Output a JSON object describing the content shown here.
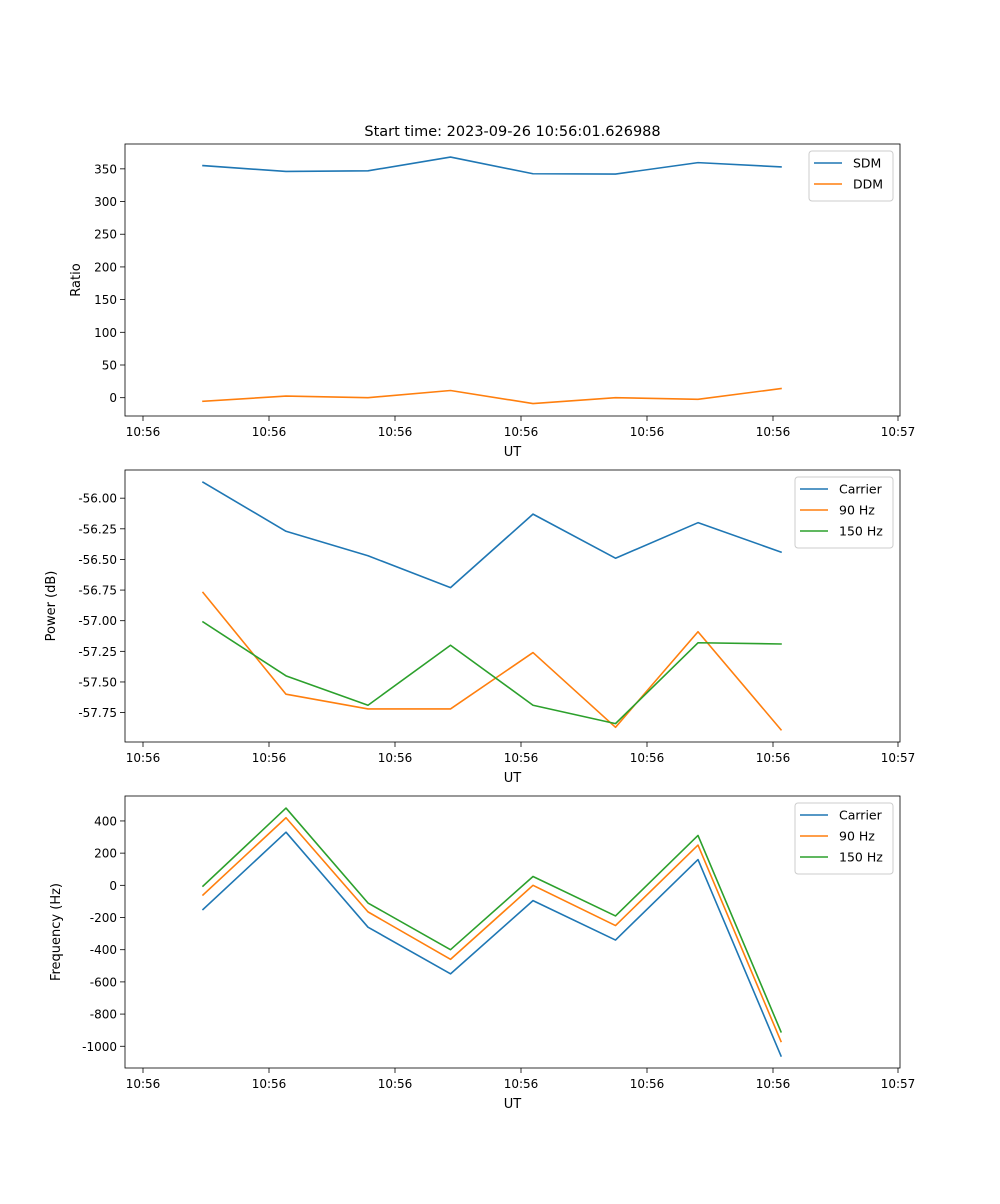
{
  "figure": {
    "title": "Start time: 2023-09-26 10:56:01.626988"
  },
  "chart_data": [
    {
      "type": "line",
      "title": "Start time: 2023-09-26 10:56:01.626988",
      "xlabel": "UT",
      "ylabel": "Ratio",
      "x_ticks": [
        "10:56",
        "10:56",
        "10:56",
        "10:56",
        "10:56",
        "10:56",
        "10:56"
      ],
      "x_last_tick": "10:57",
      "y_ticks": [
        "0",
        "50",
        "100",
        "150",
        "200",
        "250",
        "300",
        "350"
      ],
      "y_tick_values": [
        0,
        50,
        100,
        150,
        200,
        250,
        300,
        350
      ],
      "ylim": [
        -28,
        388
      ],
      "legend_position": "top-right",
      "series": [
        {
          "name": "SDM",
          "color": "#1f77b4",
          "values": [
            355,
            346,
            347,
            368,
            342.5,
            342,
            359.5,
            353
          ]
        },
        {
          "name": "DDM",
          "color": "#ff7f0e",
          "values": [
            -5.5,
            2.5,
            0,
            11,
            -9,
            0,
            -2.5,
            14
          ]
        }
      ]
    },
    {
      "type": "line",
      "xlabel": "UT",
      "ylabel": "Power (dB)",
      "x_ticks": [
        "10:56",
        "10:56",
        "10:56",
        "10:56",
        "10:56",
        "10:56",
        "10:56"
      ],
      "x_last_tick": "10:57",
      "y_ticks": [
        "-57.75",
        "-57.50",
        "-57.25",
        "-57.00",
        "-56.75",
        "-56.50",
        "-56.25",
        "-56.00"
      ],
      "y_tick_values": [
        -57.75,
        -57.5,
        -57.25,
        -57.0,
        -56.75,
        -56.5,
        -56.25,
        -56.0
      ],
      "ylim": [
        -57.99,
        -55.77
      ],
      "legend_position": "top-right",
      "series": [
        {
          "name": "Carrier",
          "color": "#1f77b4",
          "values": [
            -55.87,
            -56.27,
            -56.47,
            -56.73,
            -56.13,
            -56.49,
            -56.2,
            -56.44
          ]
        },
        {
          "name": "90 Hz",
          "color": "#ff7f0e",
          "values": [
            -56.77,
            -57.6,
            -57.72,
            -57.72,
            -57.26,
            -57.87,
            -57.09,
            -57.89
          ]
        },
        {
          "name": "150 Hz",
          "color": "#2ca02c",
          "values": [
            -57.01,
            -57.45,
            -57.69,
            -57.2,
            -57.69,
            -57.84,
            -57.18,
            -57.19
          ]
        }
      ]
    },
    {
      "type": "line",
      "xlabel": "UT",
      "ylabel": "Frequency (Hz)",
      "x_ticks": [
        "10:56",
        "10:56",
        "10:56",
        "10:56",
        "10:56",
        "10:56",
        "10:56"
      ],
      "x_last_tick": "10:57",
      "y_ticks": [
        "-1000",
        "-800",
        "-600",
        "-400",
        "-200",
        "0",
        "200",
        "400"
      ],
      "y_tick_values": [
        -1000,
        -800,
        -600,
        -400,
        -200,
        0,
        200,
        400
      ],
      "ylim": [
        -1135,
        555
      ],
      "legend_position": "top-right",
      "series": [
        {
          "name": "Carrier",
          "color": "#1f77b4",
          "values": [
            -150,
            330,
            -260,
            -550,
            -95,
            -340,
            160,
            -1060
          ]
        },
        {
          "name": "90 Hz",
          "color": "#ff7f0e",
          "values": [
            -60,
            420,
            -165,
            -460,
            0,
            -250,
            250,
            -970
          ]
        },
        {
          "name": "150 Hz",
          "color": "#2ca02c",
          "values": [
            -5,
            480,
            -110,
            -400,
            55,
            -190,
            310,
            -910
          ]
        }
      ]
    }
  ]
}
